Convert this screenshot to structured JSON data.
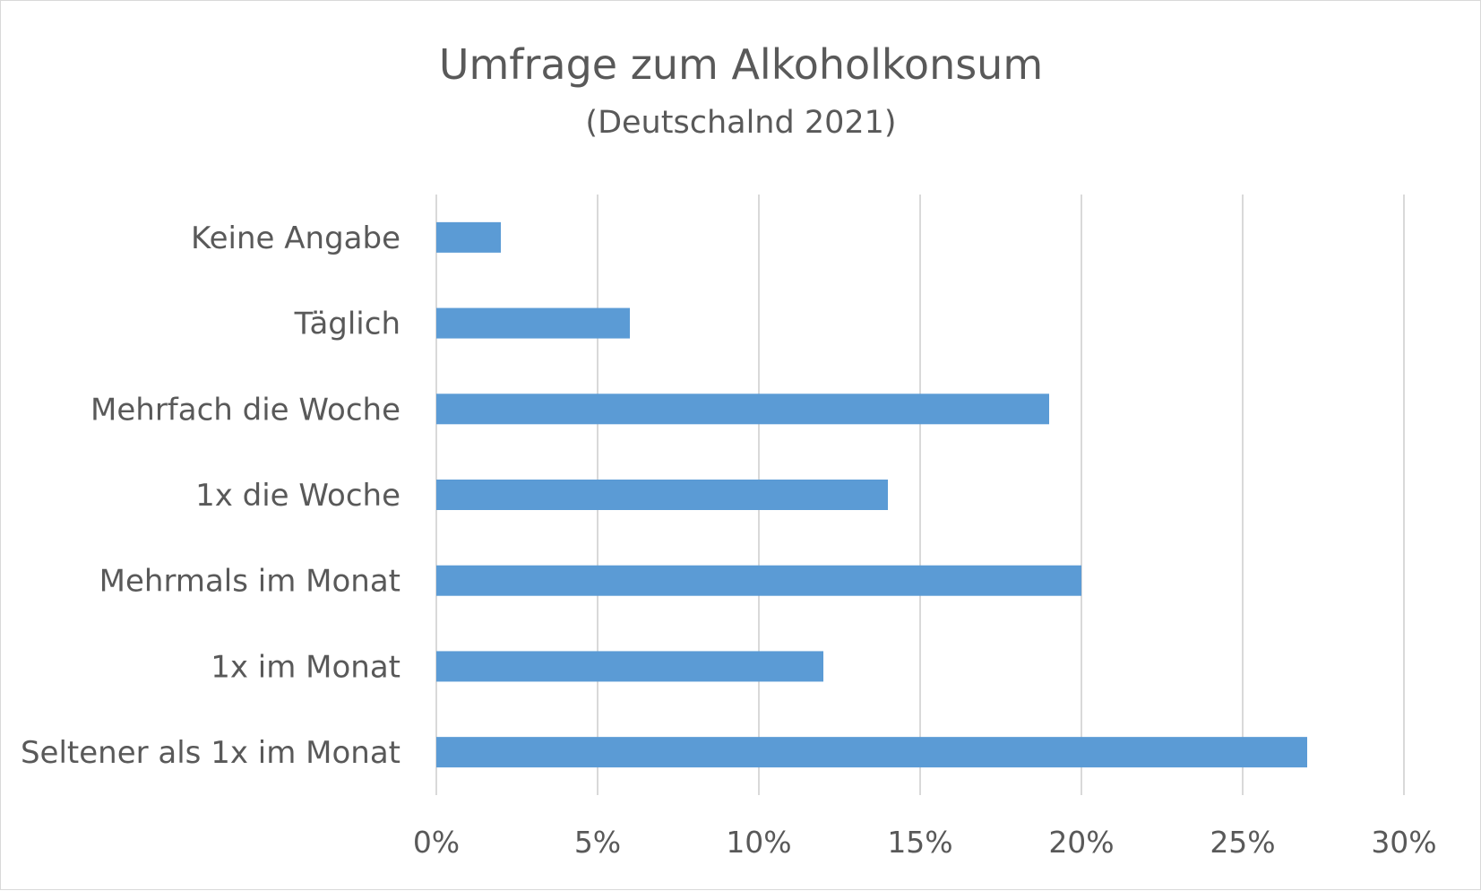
{
  "chart_data": {
    "type": "bar",
    "orientation": "horizontal",
    "title": "Umfrage zum Alkoholkonsum",
    "subtitle": "(Deutschalnd 2021)",
    "categories": [
      "Keine Angabe",
      "Täglich",
      "Mehrfach die Woche",
      "1x die Woche",
      "Mehrmals im Monat",
      "1x im Monat",
      "Seltener als 1x im Monat"
    ],
    "values": [
      2,
      6,
      19,
      14,
      20,
      12,
      27
    ],
    "value_unit": "%",
    "xlim": [
      0,
      30
    ],
    "xticks": [
      "0%",
      "5%",
      "10%",
      "15%",
      "20%",
      "25%",
      "30%"
    ],
    "grid": "vertical",
    "bar_color": "#5b9bd5",
    "grid_color": "#d9d9d9",
    "text_color": "#595959"
  }
}
